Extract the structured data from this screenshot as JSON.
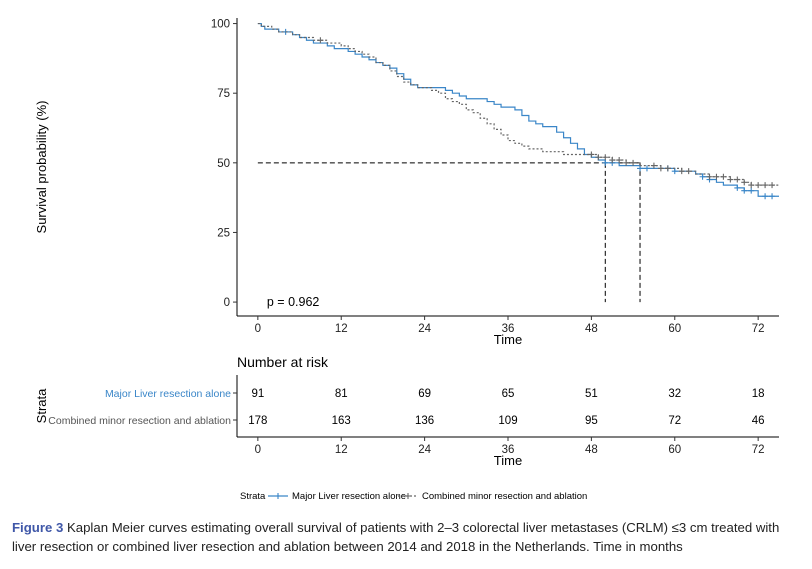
{
  "chart_data": {
    "type": "line",
    "step": true,
    "ylabel": "Survival probability (%)",
    "xlabel": "Time",
    "xlim": [
      -3,
      75
    ],
    "ylim": [
      -5,
      102
    ],
    "x_ticks": [
      0,
      12,
      24,
      36,
      48,
      60,
      72
    ],
    "y_ticks": [
      0,
      25,
      50,
      75,
      100
    ],
    "grid": false,
    "pvalue_text": "p = 0.962",
    "median_reference": {
      "y": 50,
      "x": [
        50,
        55
      ]
    },
    "series": [
      {
        "name": "Major Liver resection alone",
        "color": "#3a86c8",
        "line_style": "solid",
        "x": [
          0,
          0.5,
          1,
          3,
          5,
          6,
          7,
          8,
          10,
          11,
          13,
          14,
          15,
          16,
          17,
          18,
          19,
          20,
          21,
          22,
          23,
          25,
          27,
          28,
          29,
          30,
          31,
          33,
          34,
          35,
          37,
          38,
          39,
          40,
          41,
          43,
          44,
          45,
          46,
          47,
          48,
          49,
          50,
          51,
          52,
          53,
          54,
          55,
          56,
          57,
          58,
          59,
          60,
          61,
          62,
          63,
          64,
          65,
          66,
          67,
          68,
          69,
          70,
          71,
          72,
          73,
          74,
          75
        ],
        "y": [
          100,
          99,
          98,
          97,
          96,
          95,
          94,
          93,
          92,
          91,
          90,
          89,
          88,
          87,
          86,
          85,
          84,
          82,
          80,
          78,
          77,
          77,
          76,
          75,
          74,
          73,
          73,
          72,
          71,
          70,
          69,
          67,
          65,
          64,
          63,
          61,
          59,
          57,
          55,
          53,
          52,
          51,
          50,
          50,
          49,
          49,
          49,
          48,
          48,
          48,
          48,
          48,
          47,
          47,
          47,
          46,
          45,
          44,
          43,
          42,
          42,
          41,
          40,
          40,
          38,
          38,
          38,
          38
        ],
        "censor_x": [
          4,
          50,
          51,
          55,
          56,
          59,
          60,
          64,
          65,
          69,
          70,
          71,
          73,
          74
        ],
        "censor_y": [
          97,
          50,
          50,
          48,
          48,
          48,
          47,
          45,
          44,
          41,
          40,
          40,
          38,
          38
        ],
        "risk": [
          91,
          81,
          69,
          65,
          51,
          32,
          18
        ]
      },
      {
        "name": "Combined minor resection and ablation",
        "color": "#666666",
        "line_style": "dashed",
        "x": [
          0,
          0.5,
          1,
          2,
          3,
          4,
          5,
          6,
          7,
          8,
          9,
          10,
          11,
          12,
          13,
          14,
          15,
          16,
          17,
          18,
          19,
          20,
          21,
          22,
          23,
          24,
          25,
          26,
          27,
          28,
          29,
          30,
          31,
          32,
          33,
          34,
          35,
          36,
          37,
          38,
          39,
          40,
          41,
          42,
          43,
          44,
          45,
          46,
          47,
          48,
          49,
          50,
          51,
          52,
          53,
          54,
          55,
          56,
          57,
          58,
          59,
          60,
          61,
          62,
          63,
          64,
          65,
          66,
          67,
          68,
          69,
          70,
          71,
          72,
          73,
          74,
          75
        ],
        "y": [
          100,
          99,
          99,
          98,
          97,
          97,
          96,
          95,
          95,
          94,
          94,
          93,
          93,
          92,
          91,
          90,
          89,
          88,
          86,
          85,
          83,
          81,
          79,
          78,
          77,
          77,
          76,
          75,
          73,
          72,
          71,
          69,
          68,
          66,
          64,
          62,
          60,
          58,
          57,
          56,
          55,
          55,
          54,
          54,
          54,
          53,
          53,
          53,
          53,
          53,
          52,
          52,
          51,
          51,
          50,
          50,
          49,
          49,
          49,
          48,
          48,
          48,
          47,
          47,
          46,
          46,
          45,
          45,
          45,
          44,
          44,
          43,
          42,
          42,
          42,
          42,
          42
        ],
        "censor_x": [
          9,
          48,
          49,
          50,
          51,
          52,
          53,
          54,
          57,
          58,
          59,
          61,
          62,
          65,
          66,
          67,
          68,
          69,
          70,
          71,
          72,
          73,
          74
        ],
        "censor_y": [
          94,
          53,
          52,
          52,
          51,
          51,
          50,
          50,
          49,
          48,
          48,
          47,
          47,
          45,
          45,
          45,
          44,
          44,
          43,
          42,
          42,
          42,
          42
        ],
        "risk": [
          178,
          163,
          136,
          109,
          95,
          72,
          46
        ]
      }
    ]
  },
  "risk_table": {
    "title": "Number at risk",
    "strata_label": "Strata",
    "xlabel": "Time"
  },
  "legend": {
    "title": "Strata",
    "position": "bottom"
  },
  "caption": {
    "label": "Figure 3",
    "text": "Kaplan Meier curves estimating overall survival of patients with 2–3 colorectal liver metastases (CRLM) ≤3 cm treated with liver resection or combined liver resection and ablation between 2014 and 2018 in the Netherlands. Time in months"
  }
}
